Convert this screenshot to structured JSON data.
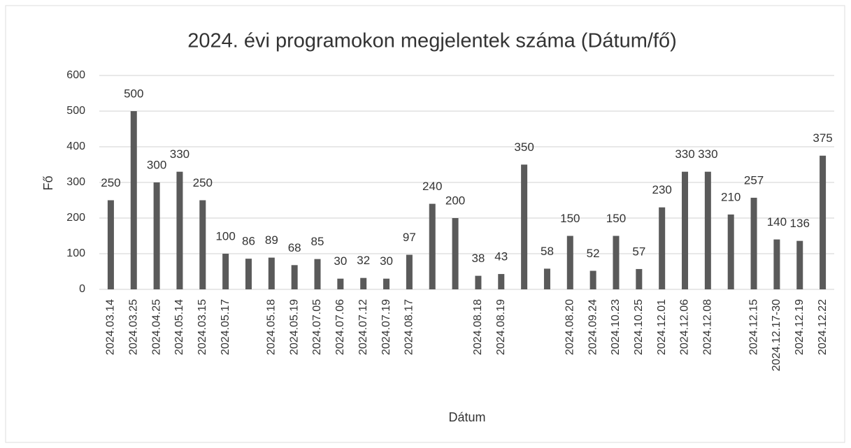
{
  "chart_data": {
    "type": "bar",
    "title": "2024. évi programokon megjelentek száma (Dátum/fő)",
    "x_label": "Dátum",
    "y_label": "Fő",
    "categories": [
      "2024.03.14",
      "2024.03.25",
      "2024.04.25",
      "2024.05.14",
      "2024.03.15",
      "2024.05.17",
      null,
      "2024.05.18",
      "2024.05.19",
      "2024.07.05",
      "2024.07.06",
      "2024.07.12",
      "2024.07.19",
      "2024.08.17",
      null,
      null,
      "2024.08.18",
      "2024.08.19",
      null,
      null,
      "2024.08.20",
      "2024.09.24",
      "2024.10.23",
      "2024.10.25",
      "2024.12.01",
      "2024.12.06",
      "2024.12.08",
      null,
      "2024.12.15",
      "2024.12.17-30",
      "2024.12.19",
      "2024.12.22"
    ],
    "values": [
      250,
      500,
      300,
      330,
      250,
      100,
      86,
      89,
      68,
      85,
      30,
      32,
      30,
      97,
      240,
      200,
      38,
      43,
      350,
      58,
      150,
      52,
      150,
      57,
      230,
      330,
      330,
      210,
      257,
      140,
      136,
      375
    ],
    "color": "#5a5a5a",
    "ylim": [
      0,
      600
    ],
    "yticks": [
      0,
      100,
      200,
      300,
      400,
      500,
      600
    ],
    "grid": true
  }
}
